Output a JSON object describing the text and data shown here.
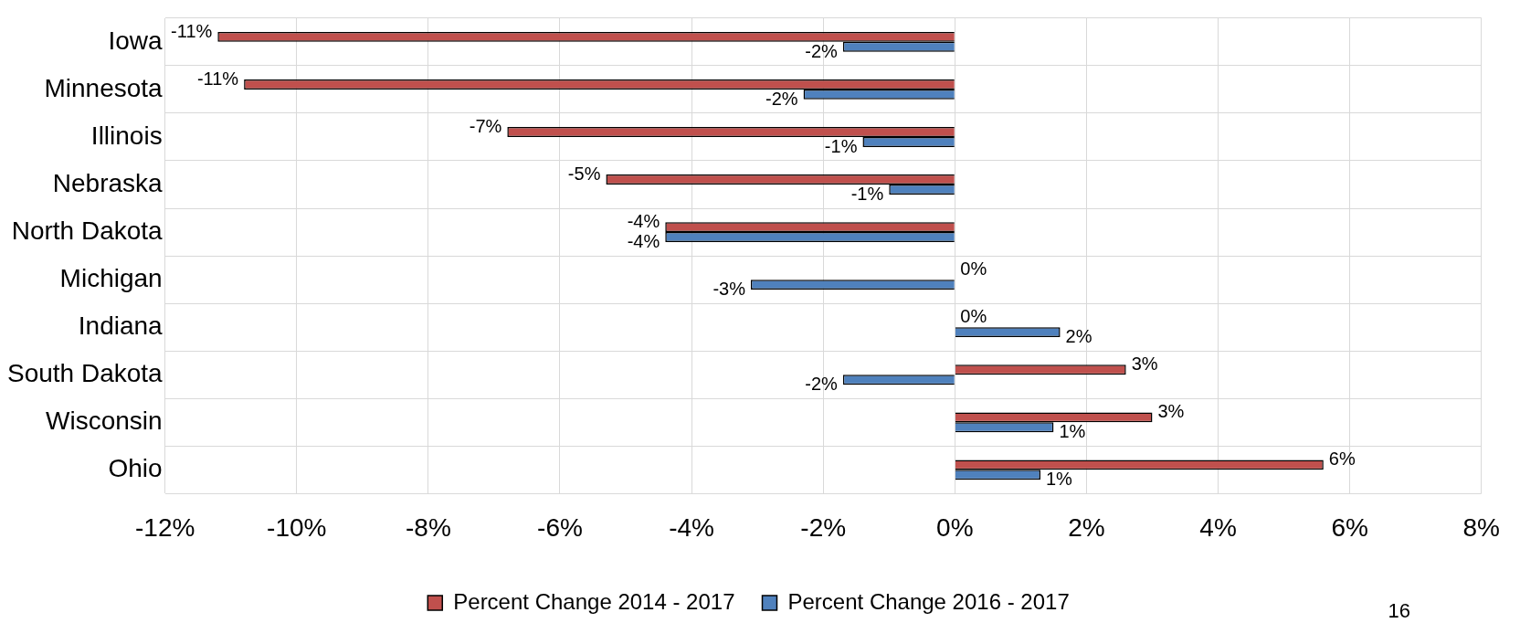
{
  "chart_data": {
    "type": "bar",
    "orientation": "horizontal",
    "categories": [
      "Iowa",
      "Minnesota",
      "Illinois",
      "Nebraska",
      "North Dakota",
      "Michigan",
      "Indiana",
      "South Dakota",
      "Wisconsin",
      "Ohio"
    ],
    "series": [
      {
        "name": "Percent Change 2014 - 2017",
        "color": "#c0504d",
        "values": [
          -11.2,
          -10.8,
          -6.8,
          -5.3,
          -4.4,
          0,
          0,
          2.6,
          3.0,
          5.6
        ],
        "value_labels": [
          "-11%",
          "-11%",
          "-7%",
          "-5%",
          "-4%",
          "0%",
          "0%",
          "3%",
          "3%",
          "6%"
        ]
      },
      {
        "name": "Percent Change 2016 - 2017",
        "color": "#4f81bd",
        "values": [
          -1.7,
          -2.3,
          -1.4,
          -1.0,
          -4.4,
          -3.1,
          1.6,
          -1.7,
          1.5,
          1.3
        ],
        "value_labels": [
          "-2%",
          "-2%",
          "-1%",
          "-1%",
          "-4%",
          "-3%",
          "2%",
          "-2%",
          "1%",
          "1%"
        ]
      }
    ],
    "xlim": [
      -12,
      8
    ],
    "xticks": [
      {
        "value": -12,
        "label": "-12%"
      },
      {
        "value": -10,
        "label": "-10%"
      },
      {
        "value": -8,
        "label": "-8%"
      },
      {
        "value": -6,
        "label": "-6%"
      },
      {
        "value": -4,
        "label": "-4%"
      },
      {
        "value": -2,
        "label": "-2%"
      },
      {
        "value": 0,
        "label": "0%"
      },
      {
        "value": 2,
        "label": "2%"
      },
      {
        "value": 4,
        "label": "4%"
      },
      {
        "value": 6,
        "label": "6%"
      },
      {
        "value": 8,
        "label": "8%"
      }
    ],
    "grid": true,
    "legend": "bottom",
    "annotations": [
      "16"
    ]
  }
}
